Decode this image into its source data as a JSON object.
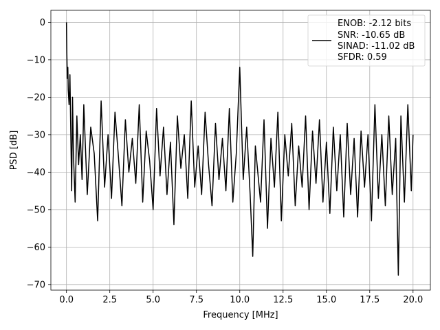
{
  "chart_data": {
    "type": "line",
    "title": "",
    "xlabel": "Frequency [MHz]",
    "ylabel": "PSD [dB]",
    "xlim": [
      -0.9,
      21.0
    ],
    "ylim": [
      -71.5,
      3.2
    ],
    "grid": true,
    "legend_position": "top-right",
    "xticks": [
      0.0,
      2.5,
      5.0,
      7.5,
      10.0,
      12.5,
      15.0,
      17.5,
      20.0
    ],
    "xtick_labels": [
      "0.0",
      "2.5",
      "5.0",
      "7.5",
      "10.0",
      "12.5",
      "15.0",
      "17.5",
      "20.0"
    ],
    "yticks": [
      0,
      -10,
      -20,
      -30,
      -40,
      -50,
      -60,
      -70
    ],
    "ytick_labels": [
      "0",
      "−10",
      "−20",
      "−30",
      "−40",
      "−50",
      "−60",
      "−70"
    ],
    "legend": [
      "ENOB: -2.12 bits",
      "SNR: -10.65 dB",
      "SINAD: -11.02 dB",
      "SFDR: 0.59"
    ],
    "series": [
      {
        "color": "#000000",
        "x": [
          0.0,
          0.02,
          0.05,
          0.08,
          0.1,
          0.15,
          0.2,
          0.25,
          0.3,
          0.35,
          0.4,
          0.5,
          0.6,
          0.7,
          0.8,
          0.9,
          1.0,
          1.2,
          1.4,
          1.6,
          1.8,
          2.0,
          2.2,
          2.4,
          2.6,
          2.8,
          3.0,
          3.2,
          3.4,
          3.6,
          3.8,
          4.0,
          4.2,
          4.4,
          4.6,
          4.8,
          5.0,
          5.2,
          5.4,
          5.6,
          5.8,
          6.0,
          6.2,
          6.4,
          6.6,
          6.8,
          7.0,
          7.2,
          7.4,
          7.6,
          7.8,
          8.0,
          8.2,
          8.4,
          8.6,
          8.8,
          9.0,
          9.2,
          9.4,
          9.6,
          9.8,
          10.0,
          10.2,
          10.4,
          10.6,
          10.75,
          10.9,
          11.2,
          11.4,
          11.6,
          11.8,
          12.0,
          12.2,
          12.4,
          12.6,
          12.8,
          13.0,
          13.2,
          13.4,
          13.6,
          13.8,
          14.0,
          14.2,
          14.4,
          14.6,
          14.8,
          15.0,
          15.2,
          15.4,
          15.6,
          15.8,
          16.0,
          16.2,
          16.4,
          16.6,
          16.8,
          17.0,
          17.2,
          17.4,
          17.6,
          17.8,
          18.0,
          18.2,
          18.4,
          18.6,
          18.8,
          19.0,
          19.15,
          19.3,
          19.5,
          19.7,
          19.9,
          20.0
        ],
        "y": [
          0,
          -8,
          -15,
          -12,
          -18,
          -22,
          -14,
          -30,
          -45,
          -20,
          -35,
          -48,
          -25,
          -38,
          -30,
          -42,
          -22,
          -46,
          -28,
          -35,
          -53,
          -21,
          -44,
          -30,
          -47,
          -24,
          -36,
          -49,
          -26,
          -40,
          -31,
          -43,
          -22,
          -48,
          -29,
          -37,
          -50,
          -23,
          -41,
          -28,
          -46,
          -32,
          -54,
          -25,
          -39,
          -30,
          -47,
          -21,
          -44,
          -33,
          -46,
          -24,
          -38,
          -49,
          -27,
          -42,
          -31,
          -45,
          -23,
          -48,
          -35,
          -12,
          -42,
          -28,
          -46,
          -62.5,
          -33,
          -48,
          -26,
          -55,
          -31,
          -44,
          -24,
          -53,
          -30,
          -41,
          -27,
          -49,
          -33,
          -44,
          -25,
          -50,
          -29,
          -43,
          -26,
          -48,
          -32,
          -51,
          -28,
          -45,
          -30,
          -52,
          -27,
          -46,
          -31,
          -52,
          -29,
          -44,
          -30,
          -53,
          -22,
          -47,
          -30,
          -49,
          -25,
          -46,
          -31,
          -67.5,
          -25,
          -48,
          -22,
          -45,
          -30
        ]
      }
    ]
  }
}
